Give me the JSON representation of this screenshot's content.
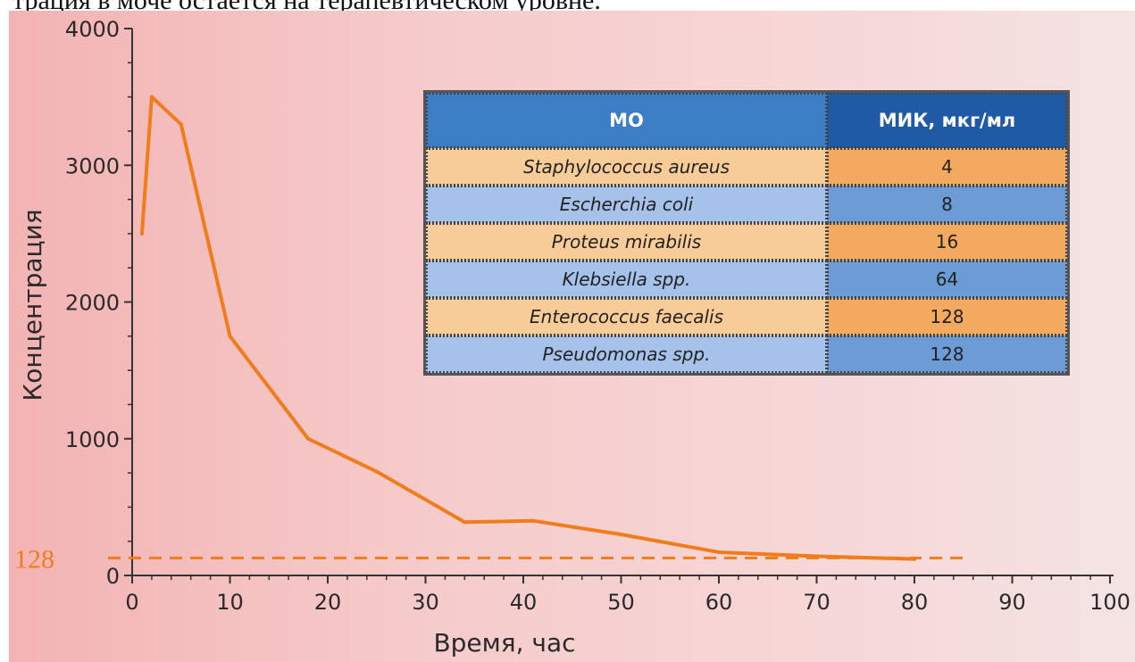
{
  "header_text": "трация в моче остается на терапевтическом уровне.",
  "table": {
    "headers": [
      "МО",
      "МИК, мкг/мл"
    ],
    "rows": [
      {
        "organism": "Staphylococcus aureus",
        "mic": "4",
        "color": "orange"
      },
      {
        "organism": "Escherchia coli",
        "mic": "8",
        "color": "blue"
      },
      {
        "organism": "Proteus mirabilis",
        "mic": "16",
        "color": "orange"
      },
      {
        "organism": "Klebsiella spp.",
        "mic": "64",
        "color": "blue"
      },
      {
        "organism": "Enterococcus faecalis",
        "mic": "128",
        "color": "orange"
      },
      {
        "organism": "Pseudomonas spp.",
        "mic": "128",
        "color": "blue"
      }
    ]
  },
  "chart_data": {
    "type": "line",
    "title": "",
    "xlabel": "Время, час",
    "ylabel": "Концентрация",
    "xlim": [
      0,
      100
    ],
    "ylim": [
      0,
      4000
    ],
    "x_ticks": [
      0,
      10,
      20,
      30,
      40,
      50,
      60,
      70,
      80,
      90,
      100
    ],
    "y_ticks": [
      0,
      1000,
      2000,
      3000,
      4000
    ],
    "series": [
      {
        "color": "#f07c1a",
        "x": [
          1,
          2,
          5,
          10,
          18,
          25,
          34,
          41,
          50,
          60,
          70,
          80
        ],
        "y": [
          2500,
          3500,
          3300,
          1750,
          1000,
          760,
          390,
          400,
          300,
          170,
          140,
          120
        ]
      }
    ],
    "reference_line": {
      "value": 128,
      "label": "128",
      "x_end": 85,
      "style": "dashed",
      "color": "#f07c1a"
    },
    "grid": false
  }
}
